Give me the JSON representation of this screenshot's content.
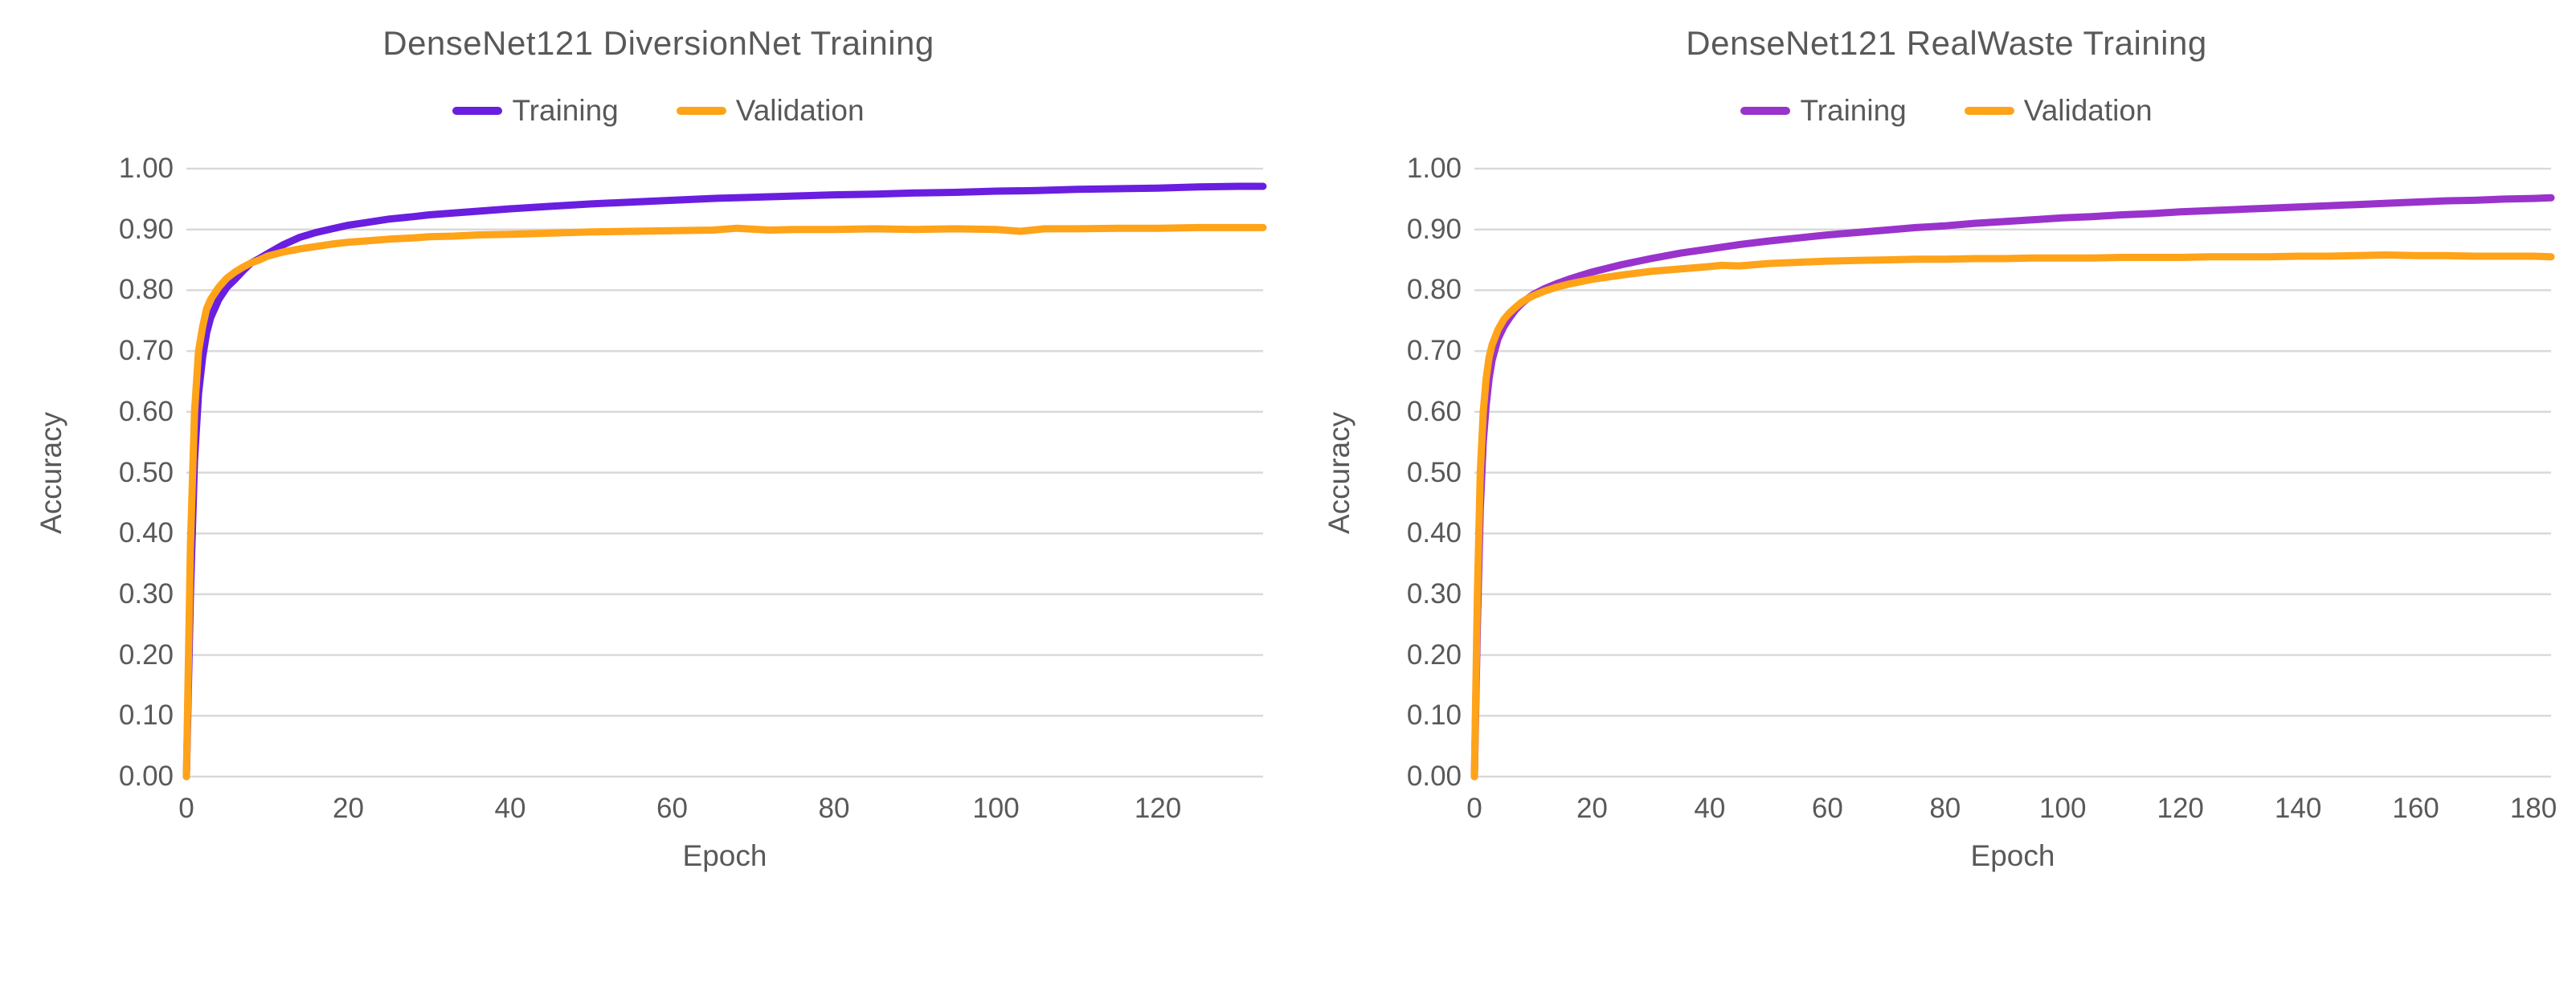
{
  "styles": {
    "text_color": "#595959",
    "grid_color": "#D9D9D9",
    "background": "#FFFFFF",
    "training_color_left": "#6A1EE0",
    "training_color_right": "#9933CC",
    "validation_color": "#FFA319"
  },
  "chart_data": [
    {
      "type": "line",
      "title": "DenseNet121 DiversionNet Training",
      "xlabel": "Epoch",
      "ylabel": "Accuracy",
      "xlim": [
        0,
        133
      ],
      "ylim": [
        0.0,
        1.0
      ],
      "xticks": [
        0,
        20,
        40,
        60,
        80,
        100,
        120
      ],
      "yticks": [
        0.0,
        0.1,
        0.2,
        0.3,
        0.4,
        0.5,
        0.6,
        0.7,
        0.8,
        0.9,
        1.0
      ],
      "grid": "horizontal",
      "legend_position": "top",
      "series": [
        {
          "name": "Training",
          "color": "#6A1EE0",
          "points": [
            [
              0,
              0.0
            ],
            [
              0.5,
              0.3
            ],
            [
              1,
              0.52
            ],
            [
              1.5,
              0.63
            ],
            [
              2,
              0.69
            ],
            [
              2.5,
              0.73
            ],
            [
              3,
              0.755
            ],
            [
              4,
              0.785
            ],
            [
              5,
              0.805
            ],
            [
              6,
              0.818
            ],
            [
              7,
              0.832
            ],
            [
              8,
              0.845
            ],
            [
              9,
              0.852
            ],
            [
              10,
              0.86
            ],
            [
              12,
              0.875
            ],
            [
              14,
              0.887
            ],
            [
              16,
              0.895
            ],
            [
              18,
              0.901
            ],
            [
              20,
              0.907
            ],
            [
              22,
              0.911
            ],
            [
              25,
              0.917
            ],
            [
              28,
              0.921
            ],
            [
              30,
              0.924
            ],
            [
              33,
              0.927
            ],
            [
              36,
              0.93
            ],
            [
              40,
              0.934
            ],
            [
              45,
              0.938
            ],
            [
              50,
              0.942
            ],
            [
              55,
              0.945
            ],
            [
              60,
              0.948
            ],
            [
              65,
              0.951
            ],
            [
              70,
              0.953
            ],
            [
              75,
              0.955
            ],
            [
              80,
              0.957
            ],
            [
              85,
              0.958
            ],
            [
              90,
              0.96
            ],
            [
              95,
              0.961
            ],
            [
              100,
              0.963
            ],
            [
              105,
              0.964
            ],
            [
              110,
              0.966
            ],
            [
              115,
              0.967
            ],
            [
              120,
              0.968
            ],
            [
              125,
              0.97
            ],
            [
              130,
              0.971
            ],
            [
              133,
              0.971
            ]
          ]
        },
        {
          "name": "Validation",
          "color": "#FFA319",
          "points": [
            [
              0,
              0.0
            ],
            [
              0.5,
              0.38
            ],
            [
              1,
              0.6
            ],
            [
              1.5,
              0.7
            ],
            [
              2,
              0.74
            ],
            [
              2.5,
              0.77
            ],
            [
              3,
              0.785
            ],
            [
              4,
              0.805
            ],
            [
              5,
              0.82
            ],
            [
              6,
              0.83
            ],
            [
              7,
              0.838
            ],
            [
              8,
              0.845
            ],
            [
              9,
              0.85
            ],
            [
              10,
              0.856
            ],
            [
              12,
              0.863
            ],
            [
              14,
              0.868
            ],
            [
              16,
              0.872
            ],
            [
              18,
              0.876
            ],
            [
              20,
              0.879
            ],
            [
              22,
              0.881
            ],
            [
              25,
              0.884
            ],
            [
              28,
              0.886
            ],
            [
              30,
              0.888
            ],
            [
              33,
              0.889
            ],
            [
              36,
              0.891
            ],
            [
              40,
              0.892
            ],
            [
              45,
              0.894
            ],
            [
              50,
              0.896
            ],
            [
              55,
              0.897
            ],
            [
              60,
              0.898
            ],
            [
              65,
              0.899
            ],
            [
              68,
              0.902
            ],
            [
              72,
              0.899
            ],
            [
              75,
              0.9
            ],
            [
              80,
              0.9
            ],
            [
              85,
              0.901
            ],
            [
              90,
              0.9
            ],
            [
              95,
              0.901
            ],
            [
              100,
              0.9
            ],
            [
              103,
              0.897
            ],
            [
              106,
              0.901
            ],
            [
              110,
              0.901
            ],
            [
              115,
              0.902
            ],
            [
              120,
              0.902
            ],
            [
              125,
              0.903
            ],
            [
              130,
              0.903
            ],
            [
              133,
              0.903
            ]
          ]
        }
      ]
    },
    {
      "type": "line",
      "title": "DenseNet121 RealWaste Training",
      "xlabel": "Epoch",
      "ylabel": "Accuracy",
      "xlim": [
        0,
        183
      ],
      "ylim": [
        0.0,
        1.0
      ],
      "xticks": [
        0,
        20,
        40,
        60,
        80,
        100,
        120,
        140,
        160,
        180
      ],
      "yticks": [
        0.0,
        0.1,
        0.2,
        0.3,
        0.4,
        0.5,
        0.6,
        0.7,
        0.8,
        0.9,
        1.0
      ],
      "grid": "horizontal",
      "legend_position": "top",
      "series": [
        {
          "name": "Training",
          "color": "#9933CC",
          "points": [
            [
              0,
              0.0
            ],
            [
              0.5,
              0.25
            ],
            [
              1,
              0.44
            ],
            [
              1.5,
              0.55
            ],
            [
              2,
              0.61
            ],
            [
              2.5,
              0.655
            ],
            [
              3,
              0.685
            ],
            [
              4,
              0.72
            ],
            [
              5,
              0.74
            ],
            [
              6,
              0.755
            ],
            [
              7,
              0.768
            ],
            [
              8,
              0.778
            ],
            [
              9,
              0.786
            ],
            [
              10,
              0.793
            ],
            [
              12,
              0.803
            ],
            [
              14,
              0.811
            ],
            [
              16,
              0.818
            ],
            [
              18,
              0.824
            ],
            [
              20,
              0.83
            ],
            [
              25,
              0.842
            ],
            [
              30,
              0.852
            ],
            [
              35,
              0.861
            ],
            [
              40,
              0.868
            ],
            [
              45,
              0.875
            ],
            [
              50,
              0.881
            ],
            [
              55,
              0.886
            ],
            [
              60,
              0.891
            ],
            [
              65,
              0.895
            ],
            [
              70,
              0.899
            ],
            [
              75,
              0.903
            ],
            [
              80,
              0.906
            ],
            [
              85,
              0.91
            ],
            [
              90,
              0.913
            ],
            [
              95,
              0.916
            ],
            [
              100,
              0.919
            ],
            [
              105,
              0.921
            ],
            [
              110,
              0.924
            ],
            [
              115,
              0.926
            ],
            [
              120,
              0.929
            ],
            [
              125,
              0.931
            ],
            [
              130,
              0.933
            ],
            [
              135,
              0.935
            ],
            [
              140,
              0.937
            ],
            [
              145,
              0.939
            ],
            [
              150,
              0.941
            ],
            [
              155,
              0.943
            ],
            [
              160,
              0.945
            ],
            [
              165,
              0.947
            ],
            [
              170,
              0.948
            ],
            [
              175,
              0.95
            ],
            [
              180,
              0.951
            ],
            [
              183,
              0.952
            ]
          ]
        },
        {
          "name": "Validation",
          "color": "#FFA319",
          "points": [
            [
              0,
              0.0
            ],
            [
              0.5,
              0.3
            ],
            [
              1,
              0.5
            ],
            [
              1.5,
              0.6
            ],
            [
              2,
              0.655
            ],
            [
              2.5,
              0.69
            ],
            [
              3,
              0.71
            ],
            [
              4,
              0.735
            ],
            [
              5,
              0.752
            ],
            [
              6,
              0.763
            ],
            [
              7,
              0.772
            ],
            [
              8,
              0.78
            ],
            [
              9,
              0.786
            ],
            [
              10,
              0.791
            ],
            [
              12,
              0.799
            ],
            [
              14,
              0.805
            ],
            [
              16,
              0.81
            ],
            [
              18,
              0.814
            ],
            [
              20,
              0.818
            ],
            [
              25,
              0.825
            ],
            [
              30,
              0.831
            ],
            [
              35,
              0.835
            ],
            [
              40,
              0.839
            ],
            [
              42,
              0.841
            ],
            [
              45,
              0.84
            ],
            [
              50,
              0.844
            ],
            [
              55,
              0.846
            ],
            [
              60,
              0.848
            ],
            [
              65,
              0.849
            ],
            [
              70,
              0.85
            ],
            [
              75,
              0.851
            ],
            [
              80,
              0.851
            ],
            [
              85,
              0.852
            ],
            [
              90,
              0.852
            ],
            [
              95,
              0.853
            ],
            [
              100,
              0.853
            ],
            [
              105,
              0.853
            ],
            [
              110,
              0.854
            ],
            [
              115,
              0.854
            ],
            [
              120,
              0.854
            ],
            [
              125,
              0.855
            ],
            [
              130,
              0.855
            ],
            [
              135,
              0.855
            ],
            [
              140,
              0.856
            ],
            [
              145,
              0.856
            ],
            [
              150,
              0.857
            ],
            [
              155,
              0.858
            ],
            [
              160,
              0.857
            ],
            [
              165,
              0.857
            ],
            [
              170,
              0.856
            ],
            [
              175,
              0.856
            ],
            [
              180,
              0.856
            ],
            [
              183,
              0.855
            ]
          ]
        }
      ]
    }
  ]
}
